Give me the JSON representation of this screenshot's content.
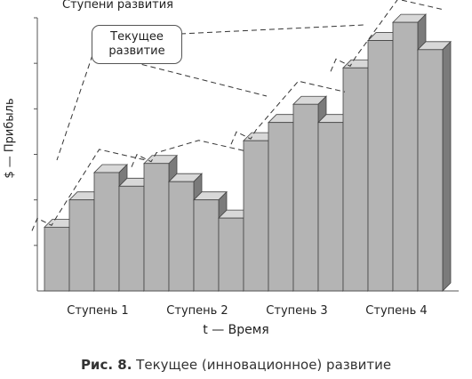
{
  "chart_data": {
    "type": "bar",
    "style": "3d-grayscale",
    "categories": [
      "Ступень 1",
      "Ступень 2",
      "Ступень 3",
      "Ступень 4"
    ],
    "values_per_category": [
      [
        1.4,
        2.0,
        2.6,
        2.3
      ],
      [
        2.8,
        2.4,
        2.0,
        1.6
      ],
      [
        3.3,
        3.7,
        4.1,
        3.7
      ],
      [
        4.9,
        5.5,
        5.9,
        5.3
      ]
    ],
    "ylim": [
      0,
      6
    ],
    "ylabel": "$ — Прибыль",
    "xlabel": "t — Время",
    "annotation_top": "Ступени развития",
    "callout": "Текущее развитие",
    "grid": false,
    "colors": {
      "front": "#b4b4b4",
      "top": "#d8d8d8",
      "side": "#7b7b7b",
      "edge": "#444444"
    }
  },
  "caption": {
    "prefix": "Рис. 8.",
    "text": "Текущее (инновационное) развитие"
  }
}
